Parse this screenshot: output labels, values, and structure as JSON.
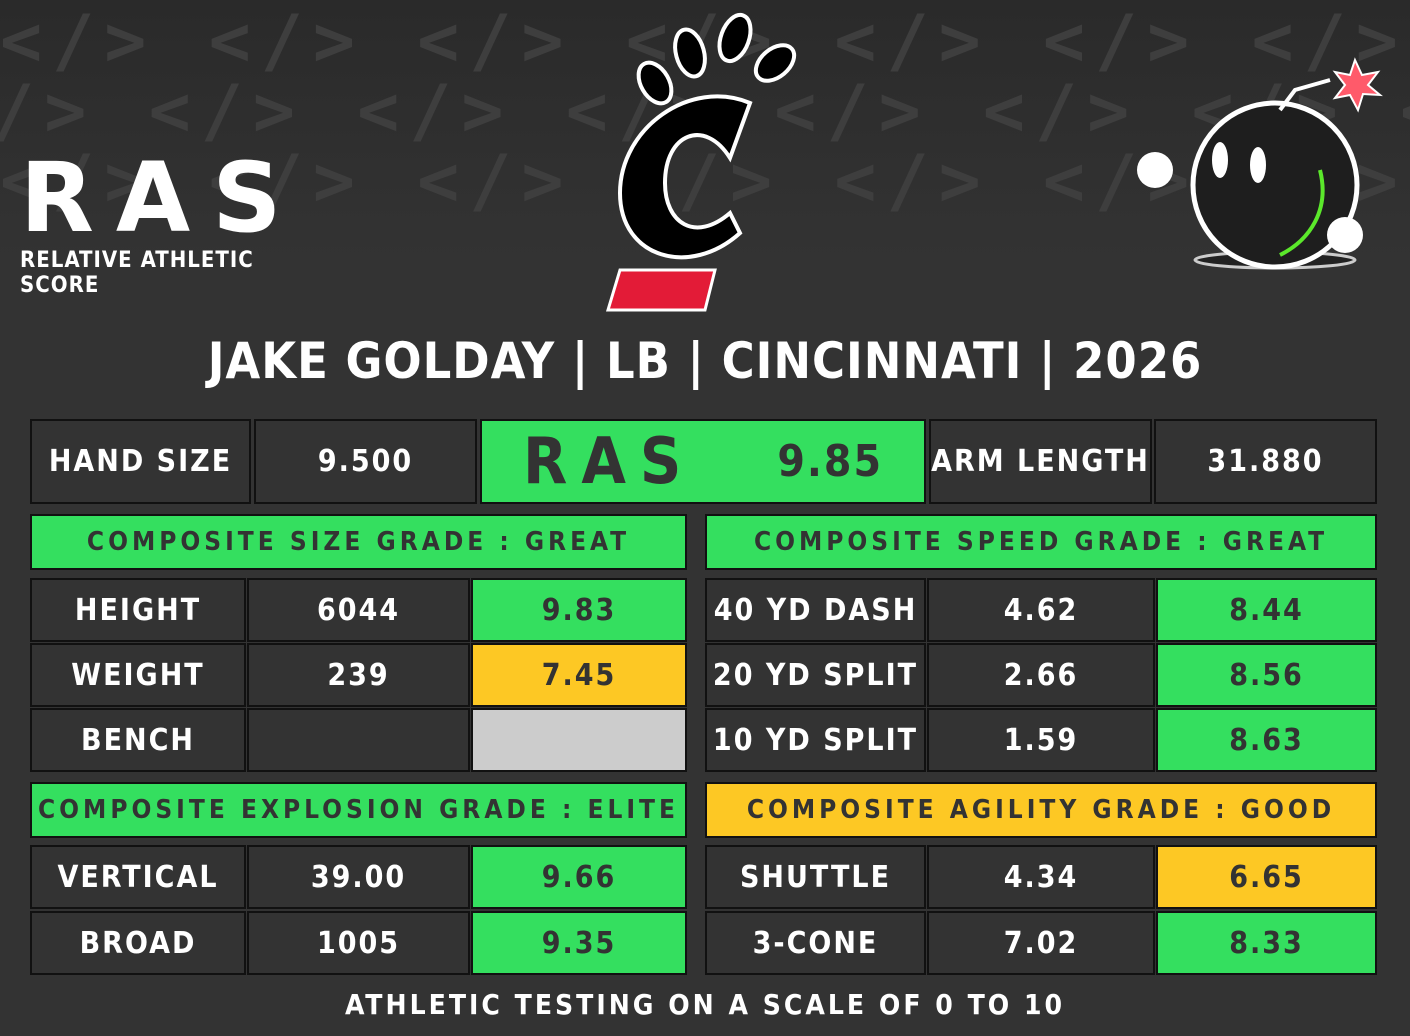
{
  "logo": {
    "letters": "RAS",
    "tagline": "RELATIVE ATHLETIC SCORE"
  },
  "title": "JAKE GOLDAY | LB | CINCINNATI | 2026",
  "top": {
    "hand_label": "HAND SIZE",
    "hand_value": "9.500",
    "ras_logo": "RAS",
    "ras_score": "9.85",
    "arm_label": "ARM LENGTH",
    "arm_value": "31.880"
  },
  "size": {
    "header": "COMPOSITE SIZE GRADE : GREAT",
    "rows": [
      {
        "label": "HEIGHT",
        "value": "6044",
        "score": "9.83"
      },
      {
        "label": "WEIGHT",
        "value": "239",
        "score": "7.45"
      },
      {
        "label": "BENCH",
        "value": "",
        "score": ""
      }
    ]
  },
  "speed": {
    "header": "COMPOSITE SPEED GRADE : GREAT",
    "rows": [
      {
        "label": "40 YD DASH",
        "value": "4.62",
        "score": "8.44"
      },
      {
        "label": "20 YD SPLIT",
        "value": "2.66",
        "score": "8.56"
      },
      {
        "label": "10 YD SPLIT",
        "value": "1.59",
        "score": "8.63"
      }
    ]
  },
  "explosion": {
    "header": "COMPOSITE EXPLOSION GRADE : ELITE",
    "rows": [
      {
        "label": "VERTICAL",
        "value": "39.00",
        "score": "9.66"
      },
      {
        "label": "BROAD",
        "value": "1005",
        "score": "9.35"
      }
    ]
  },
  "agility": {
    "header": "COMPOSITE AGILITY GRADE : GOOD",
    "rows": [
      {
        "label": "SHUTTLE",
        "value": "4.34",
        "score": "6.65"
      },
      {
        "label": "3-CONE",
        "value": "7.02",
        "score": "8.33"
      }
    ]
  },
  "footer": "ATHLETIC TESTING ON A SCALE OF 0 TO 10",
  "colors": {
    "background": "#333333",
    "green": "#34df5f",
    "yellow": "#fdc824",
    "gray": "#cccccc",
    "cincinnati_red": "#e31b37"
  }
}
